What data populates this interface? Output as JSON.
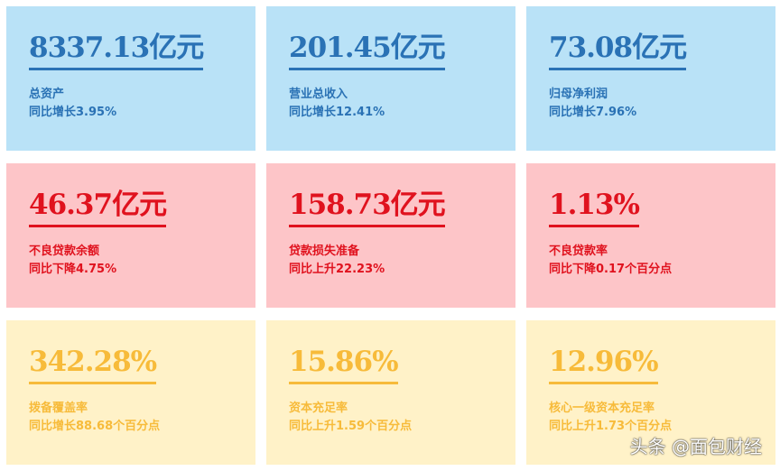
{
  "cards": [
    {
      "value": "8337.13亿元",
      "label": "总资产",
      "change": "同比增长3.95%"
    },
    {
      "value": "201.45亿元",
      "label": "营业总收入",
      "change": "同比增长12.41%"
    },
    {
      "value": "73.08亿元",
      "label": "归母净利润",
      "change": "同比增长7.96%"
    },
    {
      "value": "46.37亿元",
      "label": "不良贷款余额",
      "change": "同比下降4.75%"
    },
    {
      "value": "158.73亿元",
      "label": "贷款损失准备",
      "change": "同比上升22.23%"
    },
    {
      "value": "1.13%",
      "label": "不良贷款率",
      "change": "同比下降0.17个百分点"
    },
    {
      "value": "342.28%",
      "label": "拨备覆盖率",
      "change": "同比增长88.68个百分点"
    },
    {
      "value": "15.86%",
      "label": "资本充足率",
      "change": "同比上升1.59个百分点"
    },
    {
      "value": "12.96%",
      "label": "核心一级资本充足率",
      "change": "同比上升1.73个百分点"
    }
  ],
  "colors": {
    "blue": "#2a72b5",
    "red": "#e0121e",
    "yellow": "#f7bb3a"
  },
  "watermark": "头条 @面包财经"
}
